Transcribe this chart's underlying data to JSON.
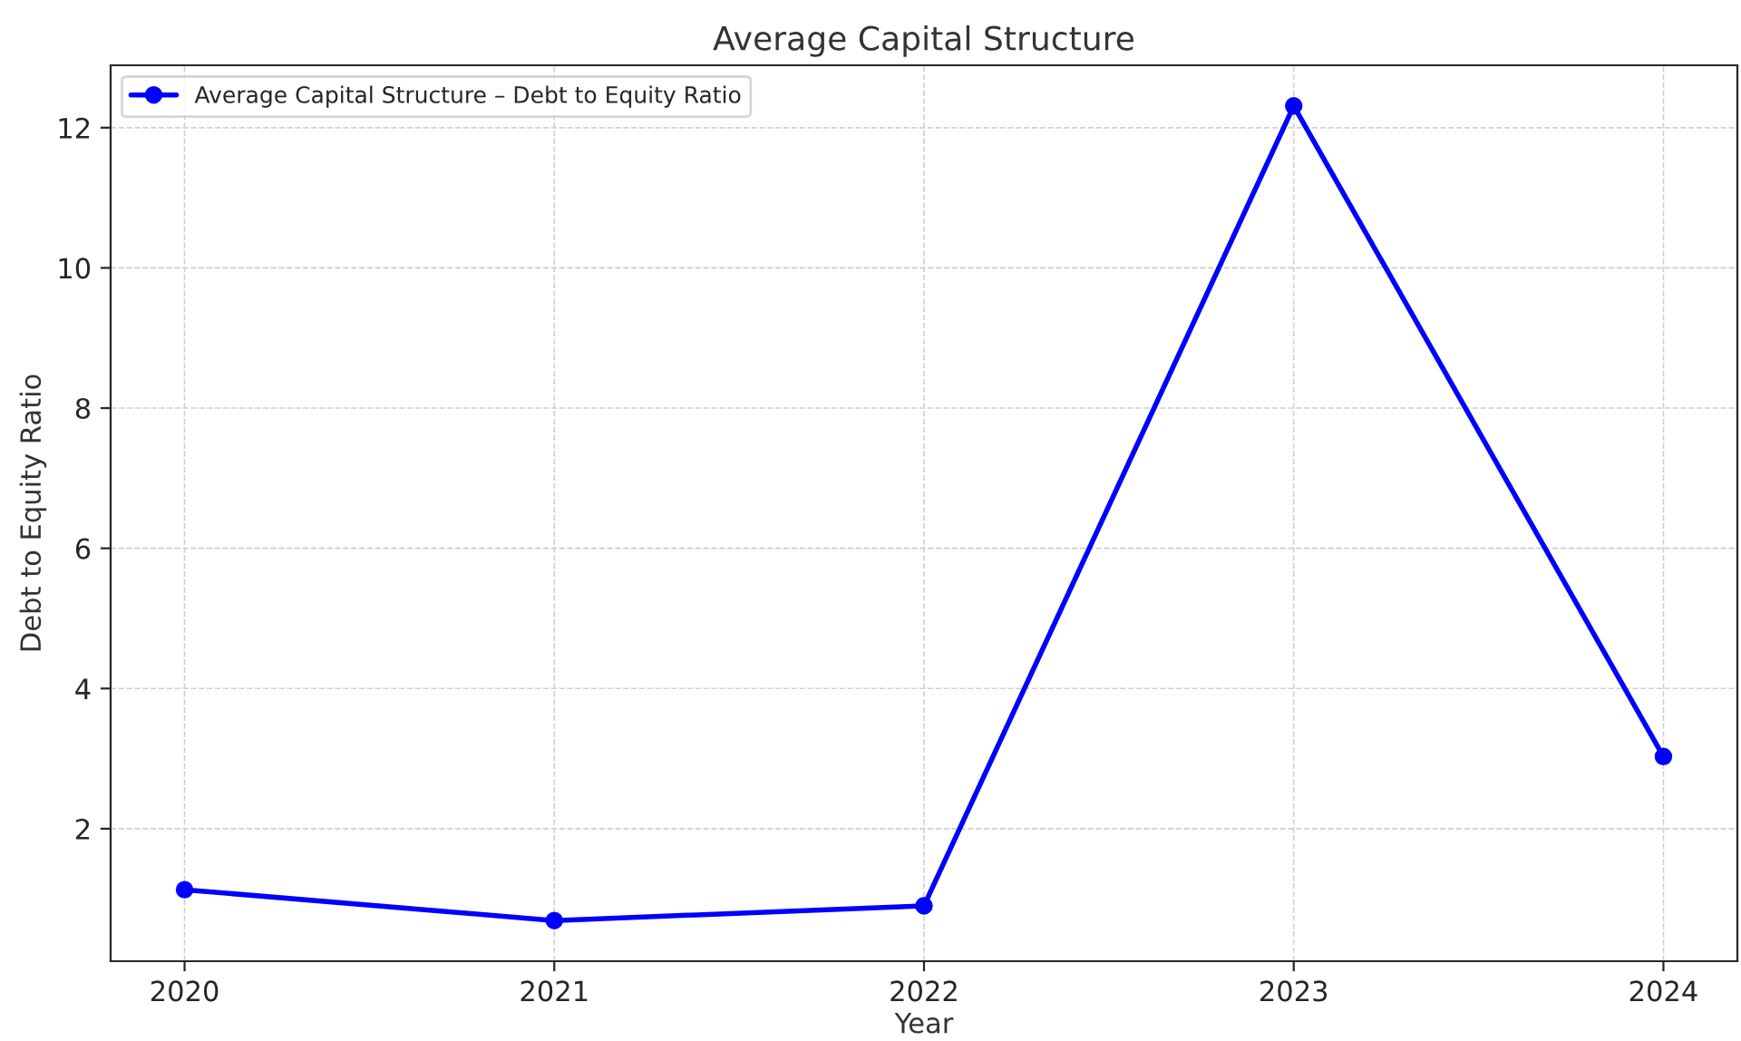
{
  "chart_data": {
    "type": "line",
    "title": "Average Capital Structure",
    "xlabel": "Year",
    "ylabel": "Debt to Equity Ratio",
    "x": [
      2020,
      2021,
      2022,
      2023,
      2024
    ],
    "series": [
      {
        "name": "Average Capital Structure – Debt to Equity Ratio",
        "color": "#0000ff",
        "values": [
          1.13,
          0.69,
          0.9,
          12.31,
          3.03
        ]
      }
    ],
    "xlim": [
      2019.8,
      2024.2
    ],
    "xticks": [
      2020,
      2021,
      2022,
      2023,
      2024
    ],
    "ylim": [
      0.11,
      12.89
    ],
    "yticks": [
      2,
      4,
      6,
      8,
      10,
      12
    ],
    "grid": true,
    "legend": "top left",
    "marker": "circle",
    "line_style": "solid"
  }
}
